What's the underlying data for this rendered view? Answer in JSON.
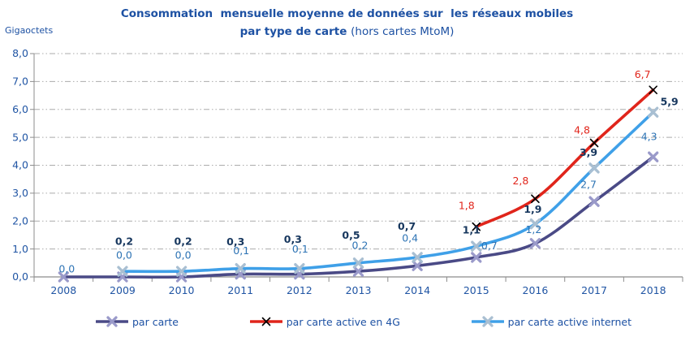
{
  "title": {
    "line1": "Consommation  mensuelle moyenne de données sur  les réseaux mobiles",
    "line2_bold": "par type de carte ",
    "line2_regular": "(hors cartes MtoM)"
  },
  "ylabel": "Gigaoctets",
  "colors": {
    "title_text": "#1D51A3",
    "axis_text": "#2055A4",
    "grid_line": "#ABABAB",
    "axis_line": "#8C8C8C",
    "label_bold_text": "#17375E",
    "label_regular_text": "#2E74B5",
    "label_red_text": "#E1261C"
  },
  "chart_data": {
    "type": "line",
    "title": "Consommation mensuelle moyenne de données sur les réseaux mobiles par type de carte (hors cartes MtoM)",
    "ylabel": "Gigaoctets",
    "xlabel": "",
    "categories": [
      "2008",
      "2009",
      "2010",
      "2011",
      "2012",
      "2013",
      "2014",
      "2015",
      "2016",
      "2017",
      "2018"
    ],
    "ylim": [
      0,
      8
    ],
    "ytick_labels": [
      "0,0",
      "1,0",
      "2,0",
      "3,0",
      "4,0",
      "5,0",
      "6,0",
      "7,0",
      "8,0"
    ],
    "grid": "horizontal dash-dot",
    "legend_position": "bottom",
    "series": [
      {
        "name": "par carte",
        "color": "#4A4A86",
        "marker": "x-thick",
        "marker_color": "#9A9ACA",
        "label_color": "#2E74B5",
        "label_bold": false,
        "points": [
          {
            "x": "2008",
            "y": 0.0,
            "label": "0,0",
            "dx": 4,
            "dy": -10
          },
          {
            "x": "2009",
            "y": 0.0,
            "label": "0,0",
            "dx": 2,
            "dy": -27
          },
          {
            "x": "2010",
            "y": 0.0,
            "label": "0,0",
            "dx": 2,
            "dy": -27
          },
          {
            "x": "2011",
            "y": 0.1,
            "label": "0,1",
            "dx": 1,
            "dy": -29
          },
          {
            "x": "2012",
            "y": 0.1,
            "label": "0,1",
            "dx": 1,
            "dy": -31
          },
          {
            "x": "2013",
            "y": 0.2,
            "label": "0,2",
            "dx": 2,
            "dy": -32
          },
          {
            "x": "2014",
            "y": 0.4,
            "label": "0,4",
            "dx": -9,
            "dy": -34
          },
          {
            "x": "2015",
            "y": 0.7,
            "label": "0,7",
            "dx": 16,
            "dy": -14
          },
          {
            "x": "2016",
            "y": 1.2,
            "label": "1,2",
            "dx": -2,
            "dy": -17
          },
          {
            "x": "2017",
            "y": 2.7,
            "label": "2,7",
            "dx": -7,
            "dy": -21
          },
          {
            "x": "2018",
            "y": 4.3,
            "label": "4,3",
            "dx": -5,
            "dy": -25
          }
        ]
      },
      {
        "name": "par carte active en 4G",
        "color": "#E0251B",
        "marker": "x-thin",
        "marker_color": "#000000",
        "label_color": "#E1261C",
        "label_bold": false,
        "points": [
          {
            "x": "2015",
            "y": 1.8,
            "label": "1,8",
            "dx": -12,
            "dy": -26
          },
          {
            "x": "2016",
            "y": 2.8,
            "label": "2,8",
            "dx": -18,
            "dy": -22
          },
          {
            "x": "2017",
            "y": 4.8,
            "label": "4,8",
            "dx": -15,
            "dy": -16
          },
          {
            "x": "2018",
            "y": 6.7,
            "label": "6,7",
            "dx": -13,
            "dy": -19
          }
        ]
      },
      {
        "name": "par carte active internet",
        "color": "#3FA0E8",
        "marker": "x-thick",
        "marker_color": "#A9BFD2",
        "label_color": "#17375E",
        "label_bold": true,
        "points": [
          {
            "x": "2009",
            "y": 0.2,
            "label": "0,2",
            "dx": 2,
            "dy": -37
          },
          {
            "x": "2010",
            "y": 0.2,
            "label": "0,2",
            "dx": 2,
            "dy": -37
          },
          {
            "x": "2011",
            "y": 0.3,
            "label": "0,3",
            "dx": -6,
            "dy": -33
          },
          {
            "x": "2012",
            "y": 0.3,
            "label": "0,3",
            "dx": -8,
            "dy": -36
          },
          {
            "x": "2013",
            "y": 0.5,
            "label": "0,5",
            "dx": -9,
            "dy": -34
          },
          {
            "x": "2014",
            "y": 0.7,
            "label": "0,7",
            "dx": -13,
            "dy": -38
          },
          {
            "x": "2015",
            "y": 1.1,
            "label": "1,1",
            "dx": -6,
            "dy": -20
          },
          {
            "x": "2016",
            "y": 1.9,
            "label": "1,9",
            "dx": -3,
            "dy": -18
          },
          {
            "x": "2017",
            "y": 3.9,
            "label": "3,9",
            "dx": -7,
            "dy": -19
          },
          {
            "x": "2018",
            "y": 5.9,
            "label": "5,9",
            "dx": 20,
            "dy": -13
          }
        ]
      }
    ]
  }
}
